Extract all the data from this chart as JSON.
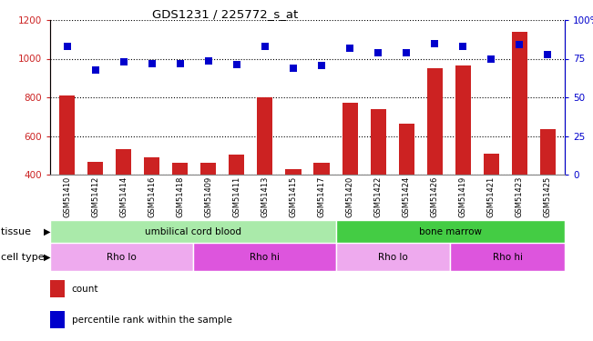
{
  "title": "GDS1231 / 225772_s_at",
  "samples": [
    "GSM51410",
    "GSM51412",
    "GSM51414",
    "GSM51416",
    "GSM51418",
    "GSM51409",
    "GSM51411",
    "GSM51413",
    "GSM51415",
    "GSM51417",
    "GSM51420",
    "GSM51422",
    "GSM51424",
    "GSM51426",
    "GSM51419",
    "GSM51421",
    "GSM51423",
    "GSM51425"
  ],
  "counts": [
    810,
    467,
    530,
    490,
    462,
    460,
    503,
    800,
    430,
    463,
    770,
    740,
    665,
    950,
    965,
    508,
    1140,
    635
  ],
  "percentile_display": [
    1065,
    940,
    985,
    975,
    975,
    990,
    970,
    1065,
    950,
    965,
    1055,
    1030,
    1030,
    1080,
    1065,
    1000,
    1075,
    1020
  ],
  "ylim_left": [
    400,
    1200
  ],
  "yticks_left": [
    400,
    600,
    800,
    1000,
    1200
  ],
  "yticks_right_labels": [
    "0",
    "25",
    "50",
    "75",
    "100%"
  ],
  "yticks_right_positions": [
    400,
    600,
    800,
    1000,
    1200
  ],
  "bar_color": "#cc2222",
  "dot_color": "#0000cc",
  "bg_color": "#ffffff",
  "tissue_groups": [
    {
      "label": "umbilical cord blood",
      "start": 0,
      "end": 10,
      "color": "#aaeaaa"
    },
    {
      "label": "bone marrow",
      "start": 10,
      "end": 18,
      "color": "#44cc44"
    }
  ],
  "cell_type_groups": [
    {
      "label": "Rho lo",
      "start": 0,
      "end": 5,
      "color": "#eeaaee"
    },
    {
      "label": "Rho hi",
      "start": 5,
      "end": 10,
      "color": "#dd55dd"
    },
    {
      "label": "Rho lo",
      "start": 10,
      "end": 14,
      "color": "#eeaaee"
    },
    {
      "label": "Rho hi",
      "start": 14,
      "end": 18,
      "color": "#dd55dd"
    }
  ],
  "legend_count_label": "count",
  "legend_pct_label": "percentile rank within the sample",
  "tissue_label": "tissue",
  "celltype_label": "cell type",
  "bar_width": 0.55,
  "dotsize": 28
}
